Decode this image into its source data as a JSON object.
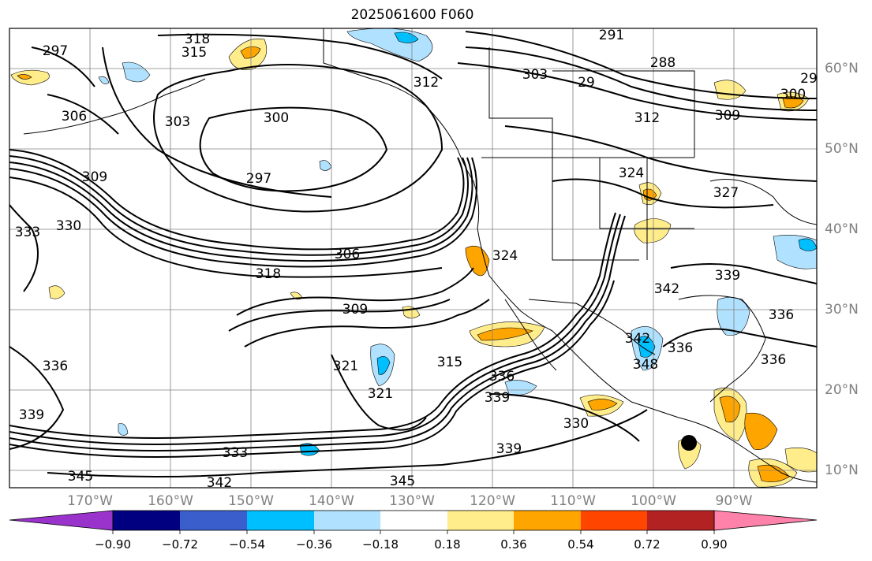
{
  "title": "2025061600 F060",
  "latitude_labels": [
    "60°N",
    "50°N",
    "40°N",
    "30°N",
    "20°N",
    "10°N"
  ],
  "longitude_labels": [
    "170°W",
    "160°W",
    "150°W",
    "140°W",
    "130°W",
    "120°W",
    "110°W",
    "100°W",
    "90°W"
  ],
  "contour_labels": [
    "318",
    "315",
    "297",
    "303",
    "306",
    "300",
    "297",
    "309",
    "333",
    "330",
    "306",
    "318",
    "324",
    "312",
    "309",
    "321",
    "315",
    "321",
    "336",
    "339",
    "330",
    "339",
    "333",
    "345",
    "342",
    "345",
    "336",
    "339",
    "336",
    "336",
    "342",
    "348",
    "342",
    "339",
    "324",
    "327",
    "288",
    "291",
    "303",
    "29",
    "312",
    "309",
    "300",
    "29",
    "336"
  ],
  "colorbar": {
    "tick_labels": [
      "−0.90",
      "−0.72",
      "−0.54",
      "−0.36",
      "−0.18",
      "0.18",
      "0.36",
      "0.54",
      "0.72",
      "0.90"
    ],
    "bins": [
      {
        "color": "#9933cc"
      },
      {
        "color": "#000080"
      },
      {
        "color": "#3a5fcd"
      },
      {
        "color": "#00bfff"
      },
      {
        "color": "#b0e2ff"
      },
      {
        "color": "#ffffff"
      },
      {
        "color": "#ffec8b"
      },
      {
        "color": "#ffa500"
      },
      {
        "color": "#ff4500"
      },
      {
        "color": "#b22222"
      },
      {
        "color": "#ff82ab"
      }
    ]
  },
  "colors": {
    "positive_light": "#ffec8b",
    "positive_mid": "#ffa500",
    "negative_light": "#b0e2ff",
    "negative_mid": "#00bfff",
    "contour": "#000000",
    "gridline": "#808080",
    "coastline": "#000000"
  }
}
